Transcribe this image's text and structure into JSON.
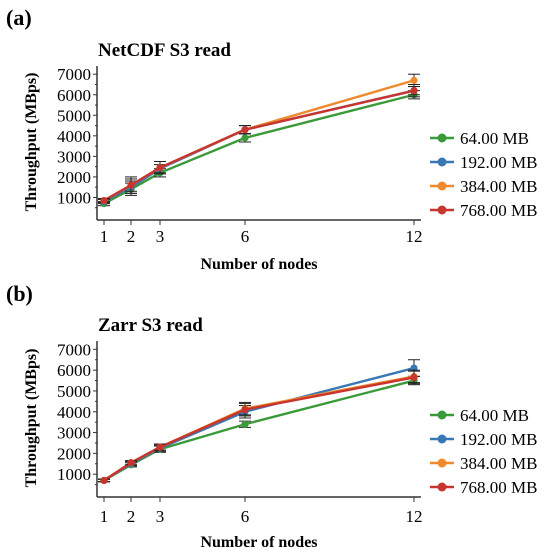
{
  "colors": {
    "background": "#ffffff",
    "axis": "#333333",
    "series": [
      "#3a9a3a",
      "#3a78b4",
      "#ee8a2e",
      "#c8352e"
    ]
  },
  "chart_data": [
    {
      "type": "line",
      "panel": "(a)",
      "title": "NetCDF S3 read",
      "xlabel": "Number of nodes",
      "ylabel": "Throughput (MBps)",
      "x": [
        1,
        2,
        3,
        6,
        12
      ],
      "xticks": [
        "1",
        "2",
        "3",
        "6",
        "12"
      ],
      "yticks": [
        1000,
        2000,
        3000,
        4000,
        5000,
        6000,
        7000
      ],
      "ylim": [
        0,
        7400
      ],
      "grid": false,
      "legend": "right",
      "series": [
        {
          "name": "64.00 MB",
          "values": [
            700,
            1400,
            2200,
            3900,
            6000
          ],
          "errors": [
            100,
            300,
            200,
            200,
            200
          ]
        },
        {
          "name": "192.00 MB",
          "values": [
            800,
            1500,
            2400,
            4300,
            6200
          ],
          "errors": [
            100,
            300,
            200,
            200,
            200
          ]
        },
        {
          "name": "384.00 MB",
          "values": [
            850,
            1600,
            2450,
            4300,
            6700
          ],
          "errors": [
            100,
            400,
            300,
            200,
            300
          ]
        },
        {
          "name": "768.00 MB",
          "values": [
            850,
            1600,
            2450,
            4300,
            6200
          ],
          "errors": [
            100,
            300,
            300,
            200,
            300
          ]
        }
      ]
    },
    {
      "type": "line",
      "panel": "(b)",
      "title": "Zarr S3 read",
      "xlabel": "Number of nodes",
      "ylabel": "Throughput (MBps)",
      "x": [
        1,
        2,
        3,
        6,
        12
      ],
      "xticks": [
        "1",
        "2",
        "3",
        "6",
        "12"
      ],
      "yticks": [
        1000,
        2000,
        3000,
        4000,
        5000,
        6000,
        7000
      ],
      "ylim": [
        0,
        7400
      ],
      "grid": false,
      "legend": "right",
      "series": [
        {
          "name": "64.00 MB",
          "values": [
            700,
            1450,
            2200,
            3400,
            5500
          ],
          "errors": [
            60,
            100,
            150,
            150,
            200
          ]
        },
        {
          "name": "192.00 MB",
          "values": [
            700,
            1500,
            2250,
            4000,
            6100
          ],
          "errors": [
            60,
            100,
            150,
            300,
            400
          ]
        },
        {
          "name": "384.00 MB",
          "values": [
            700,
            1550,
            2300,
            4150,
            5700
          ],
          "errors": [
            60,
            100,
            150,
            300,
            300
          ]
        },
        {
          "name": "768.00 MB",
          "values": [
            700,
            1550,
            2300,
            4100,
            5650
          ],
          "errors": [
            60,
            100,
            150,
            300,
            300
          ]
        }
      ]
    }
  ]
}
